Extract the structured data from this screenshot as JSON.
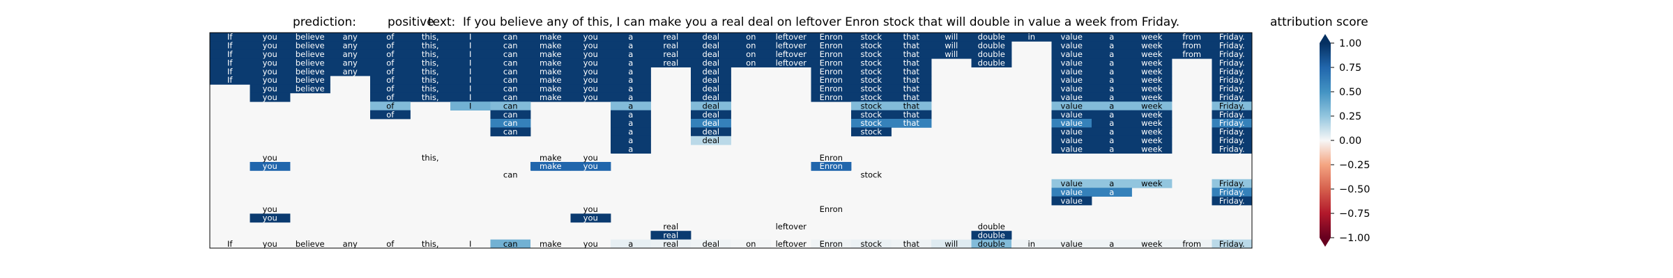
{
  "header": {
    "prediction_label": "prediction:",
    "prediction_value": "positive",
    "text_label": "text:",
    "text_value": "If you believe any of this, I can make you a real deal on leftover Enron stock that will double in value a week from Friday.",
    "colorbar_title": "attribution score"
  },
  "chart_data": {
    "type": "heatmap",
    "tokens": [
      "If",
      "you",
      "believe",
      "any",
      "of",
      "this,",
      "I",
      "can",
      "make",
      "you",
      "a",
      "real",
      "deal",
      "on",
      "leftover",
      "Enron",
      "stock",
      "that",
      "will",
      "double",
      "in",
      "value",
      "a",
      "week",
      "from",
      "Friday."
    ],
    "rows": [
      {
        "cells": [
          [
            0,
            0.95
          ],
          [
            1,
            0.95
          ],
          [
            2,
            0.95
          ],
          [
            3,
            0.95
          ],
          [
            4,
            0.95
          ],
          [
            5,
            0.95
          ],
          [
            6,
            0.95
          ],
          [
            7,
            0.95
          ],
          [
            8,
            0.95
          ],
          [
            9,
            0.95
          ],
          [
            10,
            0.95
          ],
          [
            11,
            0.95
          ],
          [
            12,
            0.95
          ],
          [
            13,
            0.95
          ],
          [
            14,
            0.95
          ],
          [
            15,
            0.95
          ],
          [
            16,
            0.95
          ],
          [
            17,
            0.95
          ],
          [
            18,
            0.95
          ],
          [
            19,
            0.95
          ],
          [
            20,
            0.95
          ],
          [
            21,
            0.95
          ],
          [
            22,
            0.95
          ],
          [
            23,
            0.95
          ],
          [
            24,
            0.95
          ],
          [
            25,
            0.95
          ]
        ]
      },
      {
        "cells": [
          [
            0,
            0.95
          ],
          [
            1,
            0.95
          ],
          [
            2,
            0.95
          ],
          [
            3,
            0.95
          ],
          [
            4,
            0.95
          ],
          [
            5,
            0.95
          ],
          [
            6,
            0.95
          ],
          [
            7,
            0.95
          ],
          [
            8,
            0.95
          ],
          [
            9,
            0.95
          ],
          [
            10,
            0.95
          ],
          [
            11,
            0.95
          ],
          [
            12,
            0.95
          ],
          [
            13,
            0.95
          ],
          [
            14,
            0.95
          ],
          [
            15,
            0.95
          ],
          [
            16,
            0.95
          ],
          [
            17,
            0.95
          ],
          [
            18,
            0.95
          ],
          [
            19,
            0.95
          ],
          [
            21,
            0.95
          ],
          [
            22,
            0.95
          ],
          [
            23,
            0.95
          ],
          [
            24,
            0.95
          ],
          [
            25,
            0.95
          ]
        ]
      },
      {
        "cells": [
          [
            0,
            0.95
          ],
          [
            1,
            0.95
          ],
          [
            2,
            0.95
          ],
          [
            3,
            0.95
          ],
          [
            4,
            0.95
          ],
          [
            5,
            0.95
          ],
          [
            6,
            0.95
          ],
          [
            7,
            0.95
          ],
          [
            8,
            0.95
          ],
          [
            9,
            0.95
          ],
          [
            10,
            0.95
          ],
          [
            11,
            0.95
          ],
          [
            12,
            0.95
          ],
          [
            13,
            0.95
          ],
          [
            14,
            0.95
          ],
          [
            15,
            0.95
          ],
          [
            16,
            0.95
          ],
          [
            17,
            0.95
          ],
          [
            18,
            0.95
          ],
          [
            19,
            0.95
          ],
          [
            21,
            0.95
          ],
          [
            22,
            0.95
          ],
          [
            23,
            0.95
          ],
          [
            24,
            0.95
          ],
          [
            25,
            0.95
          ]
        ]
      },
      {
        "cells": [
          [
            0,
            0.95
          ],
          [
            1,
            0.95
          ],
          [
            2,
            0.95
          ],
          [
            3,
            0.95
          ],
          [
            4,
            0.95
          ],
          [
            5,
            0.95
          ],
          [
            6,
            0.95
          ],
          [
            7,
            0.95
          ],
          [
            8,
            0.95
          ],
          [
            9,
            0.95
          ],
          [
            10,
            0.95
          ],
          [
            11,
            0.95
          ],
          [
            12,
            0.95
          ],
          [
            13,
            0.95
          ],
          [
            14,
            0.95
          ],
          [
            15,
            0.95
          ],
          [
            16,
            0.95
          ],
          [
            17,
            0.95
          ],
          [
            19,
            0.95
          ],
          [
            21,
            0.95
          ],
          [
            22,
            0.95
          ],
          [
            23,
            0.95
          ],
          [
            25,
            0.95
          ]
        ]
      },
      {
        "cells": [
          [
            0,
            0.95
          ],
          [
            1,
            0.95
          ],
          [
            2,
            0.95
          ],
          [
            3,
            0.95
          ],
          [
            4,
            0.95
          ],
          [
            5,
            0.95
          ],
          [
            6,
            0.95
          ],
          [
            7,
            0.95
          ],
          [
            8,
            0.95
          ],
          [
            9,
            0.95
          ],
          [
            10,
            0.95
          ],
          [
            12,
            0.95
          ],
          [
            15,
            0.95
          ],
          [
            16,
            0.95
          ],
          [
            17,
            0.95
          ],
          [
            21,
            0.95
          ],
          [
            22,
            0.95
          ],
          [
            23,
            0.95
          ],
          [
            25,
            0.95
          ]
        ]
      },
      {
        "cells": [
          [
            0,
            0.95
          ],
          [
            1,
            0.95
          ],
          [
            2,
            0.95
          ],
          [
            4,
            0.95
          ],
          [
            5,
            0.95
          ],
          [
            6,
            0.95
          ],
          [
            7,
            0.95
          ],
          [
            8,
            0.95
          ],
          [
            9,
            0.95
          ],
          [
            10,
            0.95
          ],
          [
            12,
            0.95
          ],
          [
            15,
            0.95
          ],
          [
            16,
            0.95
          ],
          [
            17,
            0.95
          ],
          [
            21,
            0.95
          ],
          [
            22,
            0.95
          ],
          [
            23,
            0.95
          ],
          [
            25,
            0.95
          ]
        ]
      },
      {
        "cells": [
          [
            1,
            0.95
          ],
          [
            2,
            0.95
          ],
          [
            4,
            0.95
          ],
          [
            5,
            0.95
          ],
          [
            6,
            0.95
          ],
          [
            7,
            0.95
          ],
          [
            8,
            0.95
          ],
          [
            9,
            0.95
          ],
          [
            10,
            0.95
          ],
          [
            12,
            0.95
          ],
          [
            15,
            0.95
          ],
          [
            16,
            0.95
          ],
          [
            17,
            0.95
          ],
          [
            21,
            0.95
          ],
          [
            22,
            0.95
          ],
          [
            23,
            0.95
          ],
          [
            25,
            0.95
          ]
        ]
      },
      {
        "cells": [
          [
            1,
            0.95
          ],
          [
            4,
            0.95
          ],
          [
            5,
            0.95
          ],
          [
            6,
            0.95
          ],
          [
            7,
            0.95
          ],
          [
            8,
            0.95
          ],
          [
            9,
            0.95
          ],
          [
            10,
            0.95
          ],
          [
            12,
            0.95
          ],
          [
            15,
            0.95
          ],
          [
            16,
            0.95
          ],
          [
            17,
            0.95
          ],
          [
            21,
            0.95
          ],
          [
            22,
            0.95
          ],
          [
            23,
            0.95
          ],
          [
            25,
            0.95
          ]
        ]
      },
      {
        "cells": [
          [
            4,
            0.3
          ],
          [
            6,
            0.35
          ],
          [
            7,
            0.3
          ],
          [
            10,
            0.3
          ],
          [
            12,
            0.3
          ],
          [
            16,
            0.3
          ],
          [
            17,
            0.3
          ],
          [
            21,
            0.3
          ],
          [
            22,
            0.3
          ],
          [
            23,
            0.3
          ],
          [
            25,
            0.3
          ]
        ]
      },
      {
        "cells": [
          [
            4,
            0.95
          ],
          [
            7,
            0.95
          ],
          [
            10,
            0.95
          ],
          [
            12,
            0.95
          ],
          [
            16,
            0.95
          ],
          [
            17,
            0.95
          ],
          [
            21,
            0.95
          ],
          [
            22,
            0.95
          ],
          [
            23,
            0.95
          ],
          [
            25,
            0.95
          ]
        ]
      },
      {
        "cells": [
          [
            7,
            0.6
          ],
          [
            10,
            0.95
          ],
          [
            12,
            0.6
          ],
          [
            16,
            0.6
          ],
          [
            17,
            0.6
          ],
          [
            21,
            0.6
          ],
          [
            22,
            0.95
          ],
          [
            23,
            0.95
          ],
          [
            25,
            0.6
          ]
        ]
      },
      {
        "cells": [
          [
            7,
            0.95
          ],
          [
            10,
            0.95
          ],
          [
            12,
            0.95
          ],
          [
            16,
            0.95
          ],
          [
            21,
            0.95
          ],
          [
            22,
            0.95
          ],
          [
            23,
            0.95
          ],
          [
            25,
            0.95
          ]
        ]
      },
      {
        "cells": [
          [
            10,
            0.95
          ],
          [
            12,
            0.15
          ],
          [
            21,
            0.95
          ],
          [
            22,
            0.95
          ],
          [
            23,
            0.95
          ],
          [
            25,
            0.95
          ]
        ]
      },
      {
        "cells": [
          [
            10,
            0.95
          ],
          [
            21,
            0.95
          ],
          [
            22,
            0.95
          ],
          [
            23,
            0.95
          ],
          [
            25,
            0.95
          ]
        ]
      },
      {
        "cells": [
          [
            1,
            0
          ],
          [
            5,
            0
          ],
          [
            8,
            0
          ],
          [
            9,
            0
          ],
          [
            15,
            0
          ]
        ]
      },
      {
        "cells": [
          [
            1,
            0.75
          ],
          [
            8,
            0.75
          ],
          [
            9,
            0.75
          ],
          [
            15,
            0.75
          ]
        ]
      },
      {
        "cells": [
          [
            7,
            0
          ],
          [
            16,
            0
          ]
        ]
      },
      {
        "cells": [
          [
            21,
            0.25
          ],
          [
            22,
            0.25
          ],
          [
            23,
            0.25
          ],
          [
            25,
            0.25
          ]
        ]
      },
      {
        "cells": [
          [
            21,
            0.6
          ],
          [
            22,
            0.6
          ],
          [
            25,
            0.6
          ]
        ]
      },
      {
        "cells": [
          [
            21,
            0.95
          ],
          [
            25,
            0.95
          ]
        ]
      },
      {
        "cells": [
          [
            1,
            0
          ],
          [
            9,
            0
          ],
          [
            15,
            0
          ]
        ]
      },
      {
        "cells": [
          [
            1,
            0.95
          ],
          [
            9,
            0.95
          ]
        ]
      },
      {
        "cells": [
          [
            11,
            0
          ],
          [
            14,
            0
          ],
          [
            19,
            0
          ]
        ]
      },
      {
        "cells": [
          [
            11,
            0.95
          ],
          [
            19,
            0.95
          ]
        ]
      },
      {
        "cells": [
          [
            0,
            0
          ],
          [
            1,
            0
          ],
          [
            2,
            0
          ],
          [
            3,
            0
          ],
          [
            4,
            0
          ],
          [
            5,
            0
          ],
          [
            6,
            0
          ],
          [
            7,
            0.35
          ],
          [
            8,
            0
          ],
          [
            9,
            0
          ],
          [
            10,
            0.04
          ],
          [
            11,
            0.03
          ],
          [
            12,
            0.02
          ],
          [
            13,
            0.01
          ],
          [
            14,
            0
          ],
          [
            15,
            0.02
          ],
          [
            16,
            0.03
          ],
          [
            17,
            0.02
          ],
          [
            18,
            0.06
          ],
          [
            19,
            0.3
          ],
          [
            20,
            0.02
          ],
          [
            21,
            0.02
          ],
          [
            22,
            0.02
          ],
          [
            23,
            0.02
          ],
          [
            24,
            0.02
          ],
          [
            25,
            0.15
          ]
        ]
      }
    ],
    "colorbar": {
      "colormap": "RdBu",
      "range": [
        -1,
        1
      ],
      "ticks": [
        1.0,
        0.75,
        0.5,
        0.25,
        0.0,
        -0.25,
        -0.5,
        -0.75,
        -1.0
      ],
      "tick_labels": [
        "1.00",
        "0.75",
        "0.50",
        "0.25",
        "0.00",
        "−0.25",
        "−0.50",
        "−0.75",
        "−1.00"
      ]
    }
  }
}
